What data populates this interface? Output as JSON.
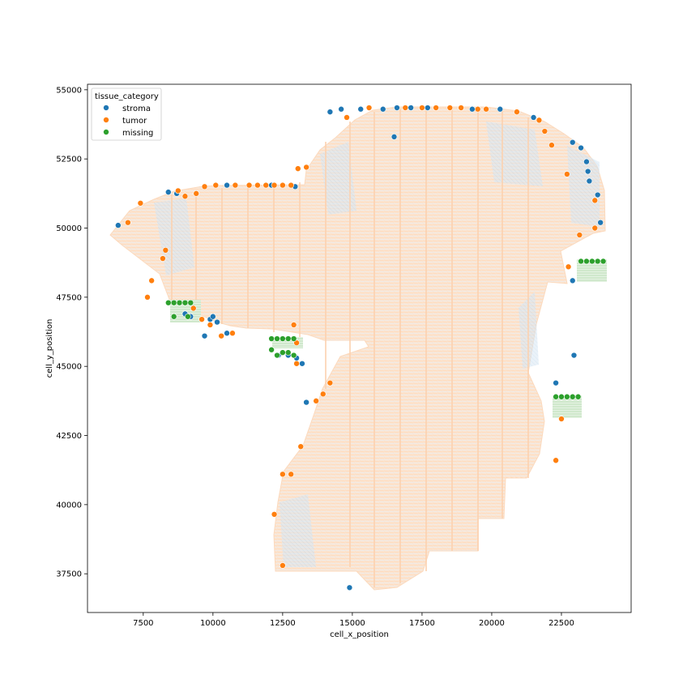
{
  "chart_data": {
    "type": "scatter",
    "xlabel": "cell_x_position",
    "ylabel": "cell_y_position",
    "xlim": [
      5500,
      25000
    ],
    "ylim": [
      36100,
      55200
    ],
    "xticks": [
      7500,
      10000,
      12500,
      15000,
      17500,
      20000,
      22500
    ],
    "yticks": [
      37500,
      40000,
      42500,
      45000,
      47500,
      50000,
      52500,
      55000
    ],
    "legend": {
      "title": "tissue_category",
      "placement": "upper-left",
      "entries": [
        "stroma",
        "tumor",
        "missing"
      ]
    },
    "colors": {
      "stroma": "#1f77b4",
      "tumor": "#ff7f0e",
      "missing": "#2ca02c",
      "tumor_fill": "#fde3cc",
      "stroma_fill": "#cfe1f2",
      "missing_fill": "#d7ecd5"
    },
    "series": [
      {
        "name": "stroma",
        "points": [
          [
            8400,
            51300
          ],
          [
            8700,
            51250
          ],
          [
            10500,
            51550
          ],
          [
            12100,
            51550
          ],
          [
            12950,
            51500
          ],
          [
            14200,
            54200
          ],
          [
            14600,
            54300
          ],
          [
            15300,
            54300
          ],
          [
            16100,
            54300
          ],
          [
            16600,
            54350
          ],
          [
            17100,
            54350
          ],
          [
            17700,
            54350
          ],
          [
            19300,
            54300
          ],
          [
            20300,
            54300
          ],
          [
            21500,
            54000
          ],
          [
            22900,
            53100
          ],
          [
            23200,
            52900
          ],
          [
            23400,
            52400
          ],
          [
            23450,
            52050
          ],
          [
            23500,
            51700
          ],
          [
            23800,
            51200
          ],
          [
            23900,
            50200
          ],
          [
            6600,
            50100
          ],
          [
            9000,
            46900
          ],
          [
            9200,
            46800
          ],
          [
            9600,
            46700
          ],
          [
            9700,
            46100
          ],
          [
            9900,
            46700
          ],
          [
            10000,
            46800
          ],
          [
            10150,
            46600
          ],
          [
            10500,
            46200
          ],
          [
            12350,
            45400
          ],
          [
            12700,
            45400
          ],
          [
            13000,
            45300
          ],
          [
            13200,
            45100
          ],
          [
            13350,
            43700
          ],
          [
            14900,
            37000
          ],
          [
            16500,
            53300
          ],
          [
            22300,
            44400
          ],
          [
            22950,
            45400
          ],
          [
            22900,
            48100
          ]
        ]
      },
      {
        "name": "tumor",
        "points": [
          [
            6950,
            50200
          ],
          [
            7400,
            50900
          ],
          [
            7650,
            47500
          ],
          [
            7800,
            48100
          ],
          [
            8200,
            48900
          ],
          [
            8300,
            49200
          ],
          [
            8750,
            51350
          ],
          [
            9000,
            51150
          ],
          [
            9400,
            51250
          ],
          [
            9700,
            51500
          ],
          [
            10100,
            51550
          ],
          [
            10800,
            51550
          ],
          [
            11300,
            51550
          ],
          [
            11600,
            51550
          ],
          [
            11900,
            51550
          ],
          [
            12200,
            51550
          ],
          [
            12500,
            51550
          ],
          [
            12800,
            51550
          ],
          [
            13050,
            52150
          ],
          [
            13350,
            52200
          ],
          [
            12200,
            39650
          ],
          [
            12500,
            41100
          ],
          [
            12800,
            41100
          ],
          [
            13000,
            45850
          ],
          [
            13150,
            42100
          ],
          [
            13700,
            43750
          ],
          [
            13950,
            44000
          ],
          [
            14200,
            44400
          ],
          [
            14800,
            54000
          ],
          [
            15600,
            54350
          ],
          [
            16900,
            54350
          ],
          [
            17500,
            54350
          ],
          [
            18000,
            54350
          ],
          [
            18500,
            54350
          ],
          [
            18900,
            54350
          ],
          [
            19500,
            54300
          ],
          [
            19800,
            54300
          ],
          [
            20900,
            54200
          ],
          [
            21700,
            53900
          ],
          [
            21900,
            53500
          ],
          [
            22150,
            53000
          ],
          [
            22700,
            51950
          ],
          [
            23700,
            51000
          ],
          [
            23700,
            50000
          ],
          [
            23150,
            49750
          ],
          [
            22750,
            48600
          ],
          [
            22500,
            43100
          ],
          [
            22300,
            41600
          ],
          [
            9300,
            47100
          ],
          [
            9600,
            46700
          ],
          [
            9900,
            46500
          ],
          [
            10300,
            46100
          ],
          [
            10700,
            46200
          ],
          [
            12500,
            37800
          ],
          [
            12900,
            46500
          ],
          [
            13000,
            45100
          ]
        ]
      },
      {
        "name": "missing",
        "points": [
          [
            8400,
            47300
          ],
          [
            8600,
            47300
          ],
          [
            8800,
            47300
          ],
          [
            9000,
            47300
          ],
          [
            9200,
            47300
          ],
          [
            8600,
            46800
          ],
          [
            9100,
            46800
          ],
          [
            12100,
            46000
          ],
          [
            12300,
            46000
          ],
          [
            12500,
            46000
          ],
          [
            12700,
            46000
          ],
          [
            12900,
            46000
          ],
          [
            12100,
            45600
          ],
          [
            12300,
            45400
          ],
          [
            12500,
            45500
          ],
          [
            12700,
            45500
          ],
          [
            12900,
            45400
          ],
          [
            22300,
            43900
          ],
          [
            22500,
            43900
          ],
          [
            22700,
            43900
          ],
          [
            22900,
            43900
          ],
          [
            23100,
            43900
          ],
          [
            23200,
            48800
          ],
          [
            23400,
            48800
          ],
          [
            23600,
            48800
          ],
          [
            23800,
            48800
          ],
          [
            24000,
            48800
          ]
        ]
      }
    ]
  }
}
